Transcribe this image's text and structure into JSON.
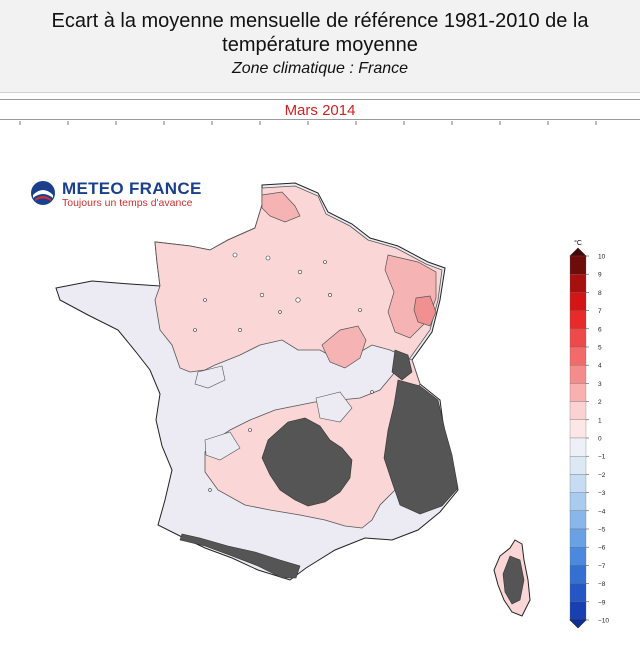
{
  "header": {
    "title": "Ecart à la moyenne mensuelle de référence 1981-2010 de la température moyenne",
    "subtitle": "Zone climatique : France"
  },
  "period": "Mars 2014",
  "logo": {
    "name": "METEO FRANCE",
    "slogan": "Toujours un temps d'avance",
    "icon": "meteo-france-logo-icon"
  },
  "colorbar": {
    "unit": "°C",
    "min": -10,
    "max": 10,
    "ticks": [
      "10",
      "9",
      "8",
      "7",
      "6",
      "5",
      "4",
      "3",
      "2",
      "1",
      "0",
      "−1",
      "−2",
      "−3",
      "−4",
      "−5",
      "−6",
      "−7",
      "−8",
      "−9",
      "−10"
    ],
    "colors": [
      "#6e0c0c",
      "#a80f0f",
      "#d41515",
      "#e82a2a",
      "#ee4a4a",
      "#f26a6a",
      "#f58c8c",
      "#f8b0b0",
      "#fbd2d2",
      "#fde6e6",
      "#eef0f8",
      "#dde8f5",
      "#c7dcf2",
      "#a9cbee",
      "#89b7ea",
      "#6aa1e4",
      "#4a89dd",
      "#3370d2",
      "#2457c4",
      "#1840b0"
    ],
    "colors_note_hidden": true
  },
  "map": {
    "region": "France",
    "mountain_fill": "#555555",
    "warm_anomaly_fill": "#fbd6d6",
    "neutral_fill": "#eceaf2"
  }
}
